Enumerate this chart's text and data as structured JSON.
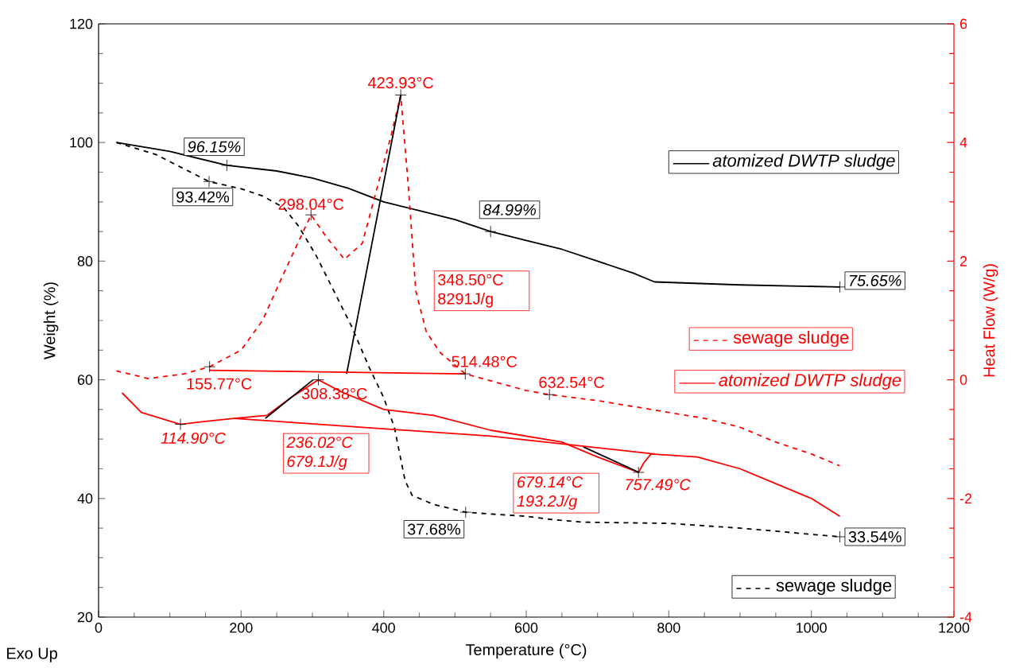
{
  "chart_data": {
    "type": "line",
    "xlabel": "Temperature (°C)",
    "ylabel": "Weight (%)",
    "y2label": "Heat Flow (W/g)",
    "xlim": [
      0,
      1200
    ],
    "xticks": [
      0,
      200,
      400,
      600,
      800,
      1000,
      1200
    ],
    "ylim": [
      20,
      120
    ],
    "yticks": [
      20,
      40,
      60,
      80,
      100,
      120
    ],
    "y2lim": [
      -4,
      6
    ],
    "y2ticks": [
      -4,
      -2,
      0,
      2,
      4,
      6
    ],
    "legend": "right",
    "series": [
      {
        "name": "atomized DWTP sludge",
        "color": "#000000",
        "line_style": "solid",
        "x": [
          25,
          100,
          180,
          250,
          300,
          350,
          400,
          450,
          500,
          550,
          600,
          650,
          700,
          750,
          780,
          900,
          1040
        ],
        "values": [
          100,
          98.5,
          96.15,
          95.2,
          94,
          92.3,
          90,
          88.5,
          87,
          84.99,
          83.5,
          82,
          80,
          78,
          76.5,
          76,
          75.65
        ]
      },
      {
        "name": "sewage sludge",
        "color": "#000000",
        "line_style": "dashed",
        "x": [
          25,
          80,
          155,
          200,
          230,
          260,
          280,
          305,
          330,
          355,
          380,
          400,
          415,
          430,
          440,
          470,
          515,
          560,
          600,
          640,
          680,
          800,
          900,
          1040
        ],
        "values": [
          100,
          98,
          93.42,
          92.2,
          91,
          89,
          86,
          81,
          75,
          69,
          62,
          57,
          52,
          43,
          40.5,
          39,
          37.68,
          37.3,
          37,
          36.4,
          36,
          35.8,
          35,
          33.54
        ]
      },
      {
        "name": "sewage sludge",
        "color": "#ff0000",
        "line_style": "dashed",
        "axis": "y2",
        "x": [
          25,
          70,
          120,
          155.77,
          200,
          230,
          260,
          298.04,
          320,
          345,
          370,
          390,
          410,
          423.93,
          435,
          445,
          460,
          480,
          514.48,
          560,
          600,
          632.54,
          700,
          800,
          850,
          900,
          950,
          1000,
          1040
        ],
        "values": [
          0.15,
          0.02,
          0.1,
          0.22,
          0.5,
          1.0,
          1.8,
          2.78,
          2.4,
          2.03,
          2.3,
          3.2,
          4.1,
          4.8,
          3.2,
          1.5,
          0.8,
          0.45,
          0.1,
          -0.05,
          -0.18,
          -0.25,
          -0.35,
          -0.55,
          -0.65,
          -0.8,
          -1.05,
          -1.25,
          -1.45
        ]
      },
      {
        "name": "atomized DWTP sludge",
        "color": "#ff0000",
        "line_style": "solid",
        "axis": "y2",
        "x": [
          33,
          60,
          114.9,
          150,
          190,
          236,
          270,
          308.38,
          340,
          400,
          470,
          550,
          650,
          700,
          757.49,
          765,
          775,
          840,
          900,
          950,
          1000,
          1040
        ],
        "values": [
          -0.22,
          -0.55,
          -0.75,
          -0.7,
          -0.65,
          -0.6,
          -0.3,
          0.0,
          -0.2,
          -0.5,
          -0.6,
          -0.85,
          -1.05,
          -1.3,
          -1.56,
          -1.4,
          -1.25,
          -1.3,
          -1.5,
          -1.75,
          -2.0,
          -2.3
        ]
      },
      {
        "color": "#000000",
        "line_style": "solid",
        "axis": "y2",
        "x": [
          348,
          423.93
        ],
        "values": [
          0.1,
          4.8
        ]
      },
      {
        "color": "#000000",
        "line_style": "solid",
        "axis": "y2",
        "x": [
          234,
          301
        ],
        "values": [
          -0.65,
          0.0
        ]
      },
      {
        "color": "#000000",
        "line_style": "solid",
        "axis": "y2",
        "x": [
          680,
          758
        ],
        "values": [
          -1.13,
          -1.56
        ]
      },
      {
        "color": "#ff0000",
        "line_style": "solid",
        "axis": "y2",
        "x": [
          155.77,
          514.48
        ],
        "values": [
          0.16,
          0.1
        ]
      },
      {
        "color": "#ff0000",
        "line_style": "solid",
        "axis": "y2",
        "x": [
          190,
          550,
          780
        ],
        "values": [
          -0.65,
          -0.95,
          -1.25
        ]
      }
    ],
    "annotations": [
      "423.93°C",
      {
        "text": "96.15%",
        "x": 180,
        "y": 96.15
      },
      {
        "text": "93.42%",
        "x": 155,
        "y": 93.42
      },
      "298.04°C",
      {
        "text": "84.99%",
        "x": 550,
        "y": 84.99
      },
      {
        "text": "75.65%",
        "x": 1040,
        "y": 75.65
      },
      "348.50°C 8291J/g",
      "155.77°C",
      "514.48°C",
      "632.54°C",
      "308.38°C",
      "114.90°C",
      "236.02°C 679.1J/g",
      "679.14°C 193.2J/g",
      "757.49°C",
      {
        "text": "37.68%",
        "x": 515,
        "y": 37.68
      },
      {
        "text": "33.54%",
        "x": 1040,
        "y": 33.54
      },
      "Exo Up"
    ]
  }
}
